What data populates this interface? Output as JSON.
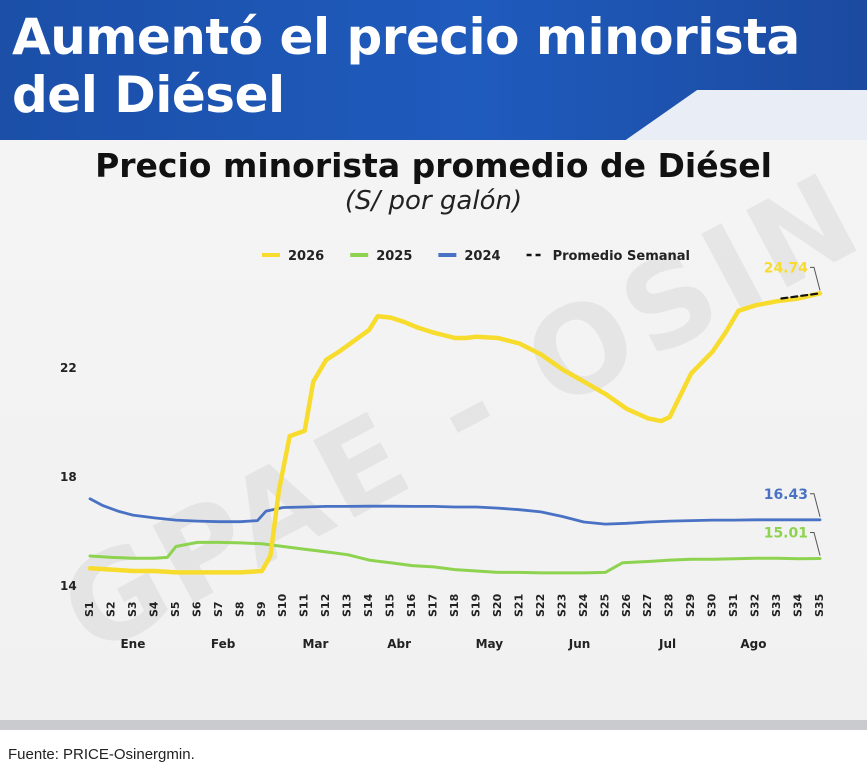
{
  "header": {
    "title": "Aumentó el precio minorista del Diésel"
  },
  "footer": {
    "source": "Fuente: PRICE-Osinergmin."
  },
  "watermark": "GPAE - OSIN",
  "colors": {
    "s2026": "#f7dc2e",
    "s2025": "#8ed34f",
    "s2024": "#4a72c4",
    "avg": "#111111"
  },
  "chart_data": {
    "type": "line",
    "title": "Precio minorista promedio de Diésel",
    "subtitle": "(S/ por galón)",
    "xlabel": "",
    "ylabel": "",
    "y_ticks": [
      14,
      18,
      22
    ],
    "ylim": [
      14,
      25.5
    ],
    "legend_position": "top",
    "grid": false,
    "x_ticks": [
      "S1",
      "S2",
      "S3",
      "S4",
      "S5",
      "S6",
      "S7",
      "S8",
      "S9",
      "S10",
      "S11",
      "S12",
      "S13",
      "S14",
      "S15",
      "S16",
      "S17",
      "S18",
      "S19",
      "S20",
      "S21",
      "S22",
      "S23",
      "S24",
      "S25",
      "S26",
      "S27",
      "S28",
      "S29",
      "S30",
      "S31",
      "S32",
      "S33",
      "S34",
      "S35"
    ],
    "months": [
      {
        "label": "Ene",
        "week": 3.0
      },
      {
        "label": "Feb",
        "week": 7.2
      },
      {
        "label": "Mar",
        "week": 11.5
      },
      {
        "label": "Abr",
        "week": 15.4
      },
      {
        "label": "May",
        "week": 19.6
      },
      {
        "label": "Jun",
        "week": 23.8
      },
      {
        "label": "Jul",
        "week": 27.9
      },
      {
        "label": "Ago",
        "week": 31.9
      }
    ],
    "series": [
      {
        "name": "2026",
        "key": "s2026",
        "end_label": "24.74",
        "points": [
          [
            1,
            14.65
          ],
          [
            2,
            14.6
          ],
          [
            3,
            14.55
          ],
          [
            4,
            14.55
          ],
          [
            5,
            14.5
          ],
          [
            6,
            14.5
          ],
          [
            7,
            14.5
          ],
          [
            8,
            14.5
          ],
          [
            9,
            14.55
          ],
          [
            9.4,
            15.1
          ],
          [
            9.8,
            17.5
          ],
          [
            10.3,
            19.5
          ],
          [
            11,
            19.7
          ],
          [
            11.4,
            21.5
          ],
          [
            12,
            22.3
          ],
          [
            12.6,
            22.6
          ],
          [
            13.3,
            23.0
          ],
          [
            14,
            23.4
          ],
          [
            14.4,
            23.9
          ],
          [
            15,
            23.85
          ],
          [
            15.6,
            23.7
          ],
          [
            16.2,
            23.5
          ],
          [
            17,
            23.3
          ],
          [
            18,
            23.1
          ],
          [
            18.5,
            23.1
          ],
          [
            19,
            23.15
          ],
          [
            20,
            23.1
          ],
          [
            21,
            22.9
          ],
          [
            22,
            22.5
          ],
          [
            23,
            21.95
          ],
          [
            24,
            21.5
          ],
          [
            25,
            21.05
          ],
          [
            26,
            20.5
          ],
          [
            27,
            20.15
          ],
          [
            27.6,
            20.05
          ],
          [
            28,
            20.2
          ],
          [
            28.5,
            21.0
          ],
          [
            29,
            21.8
          ],
          [
            30,
            22.6
          ],
          [
            30.6,
            23.3
          ],
          [
            31.2,
            24.1
          ],
          [
            32,
            24.3
          ],
          [
            33,
            24.45
          ],
          [
            34,
            24.55
          ],
          [
            35,
            24.74
          ]
        ]
      },
      {
        "name": "2025",
        "key": "s2025",
        "end_label": "15.01",
        "points": [
          [
            1,
            15.1
          ],
          [
            2,
            15.05
          ],
          [
            3,
            15.02
          ],
          [
            4,
            15.02
          ],
          [
            4.6,
            15.05
          ],
          [
            5,
            15.45
          ],
          [
            6,
            15.6
          ],
          [
            7,
            15.6
          ],
          [
            8,
            15.58
          ],
          [
            9,
            15.55
          ],
          [
            10,
            15.45
          ],
          [
            11,
            15.35
          ],
          [
            12,
            15.25
          ],
          [
            13,
            15.15
          ],
          [
            14,
            14.95
          ],
          [
            15,
            14.85
          ],
          [
            16,
            14.75
          ],
          [
            17,
            14.7
          ],
          [
            18,
            14.6
          ],
          [
            19,
            14.55
          ],
          [
            20,
            14.5
          ],
          [
            21,
            14.5
          ],
          [
            22,
            14.48
          ],
          [
            23,
            14.48
          ],
          [
            24,
            14.48
          ],
          [
            25,
            14.5
          ],
          [
            25.8,
            14.85
          ],
          [
            27,
            14.9
          ],
          [
            28,
            14.95
          ],
          [
            29,
            14.98
          ],
          [
            30,
            14.98
          ],
          [
            31,
            15.0
          ],
          [
            32,
            15.02
          ],
          [
            33,
            15.02
          ],
          [
            34,
            15.0
          ],
          [
            35,
            15.01
          ]
        ]
      },
      {
        "name": "2024",
        "key": "s2024",
        "end_label": "16.43",
        "points": [
          [
            1,
            17.2
          ],
          [
            1.6,
            16.95
          ],
          [
            2.3,
            16.75
          ],
          [
            3,
            16.6
          ],
          [
            4,
            16.5
          ],
          [
            5,
            16.42
          ],
          [
            6,
            16.38
          ],
          [
            7,
            16.36
          ],
          [
            8,
            16.36
          ],
          [
            8.8,
            16.4
          ],
          [
            9.2,
            16.75
          ],
          [
            10,
            16.88
          ],
          [
            11,
            16.9
          ],
          [
            12,
            16.92
          ],
          [
            13,
            16.92
          ],
          [
            14,
            16.93
          ],
          [
            15,
            16.93
          ],
          [
            16,
            16.92
          ],
          [
            17,
            16.92
          ],
          [
            18,
            16.9
          ],
          [
            19,
            16.9
          ],
          [
            20,
            16.86
          ],
          [
            21,
            16.8
          ],
          [
            22,
            16.72
          ],
          [
            23,
            16.55
          ],
          [
            24,
            16.35
          ],
          [
            25,
            16.27
          ],
          [
            26,
            16.3
          ],
          [
            27,
            16.35
          ],
          [
            28,
            16.38
          ],
          [
            29,
            16.4
          ],
          [
            30,
            16.42
          ],
          [
            31,
            16.42
          ],
          [
            32,
            16.43
          ],
          [
            33,
            16.43
          ],
          [
            34,
            16.43
          ],
          [
            35,
            16.43
          ]
        ]
      },
      {
        "name": "Promedio Semanal",
        "key": "avg",
        "dashed": true,
        "points": [
          [
            33.2,
            24.55
          ],
          [
            35,
            24.74
          ]
        ]
      }
    ]
  }
}
